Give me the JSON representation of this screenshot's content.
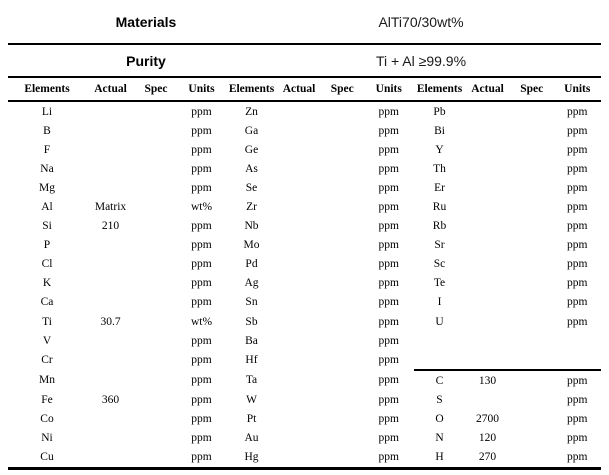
{
  "document": {
    "materials_label": "Materials",
    "materials_value": "AlTi70/30wt%",
    "purity_label": "Purity",
    "purity_value": "Ti + Al ≥99.9%"
  },
  "table": {
    "column_headers": [
      "Elements",
      "Actual",
      "Spec",
      "Units"
    ],
    "groups": [
      {
        "rows": [
          [
            "Li",
            "",
            "",
            "ppm"
          ],
          [
            "B",
            "",
            "",
            "ppm"
          ],
          [
            "F",
            "",
            "",
            "ppm"
          ],
          [
            "Na",
            "",
            "",
            "ppm"
          ],
          [
            "Mg",
            "",
            "",
            "ppm"
          ],
          [
            "Al",
            "Matrix",
            "",
            "wt%"
          ],
          [
            "Si",
            "210",
            "",
            "ppm"
          ],
          [
            "P",
            "",
            "",
            "ppm"
          ],
          [
            "Cl",
            "",
            "",
            "ppm"
          ],
          [
            "K",
            "",
            "",
            "ppm"
          ],
          [
            "Ca",
            "",
            "",
            "ppm"
          ],
          [
            "Ti",
            "30.7",
            "",
            "wt%"
          ],
          [
            "V",
            "",
            "",
            "ppm"
          ],
          [
            "Cr",
            "",
            "",
            "ppm"
          ],
          [
            "Mn",
            "",
            "",
            "ppm"
          ],
          [
            "Fe",
            "360",
            "",
            "ppm"
          ],
          [
            "Co",
            "",
            "",
            "ppm"
          ],
          [
            "Ni",
            "",
            "",
            "ppm"
          ],
          [
            "Cu",
            "",
            "",
            "ppm"
          ]
        ]
      },
      {
        "rows": [
          [
            "Zn",
            "",
            "",
            "ppm"
          ],
          [
            "Ga",
            "",
            "",
            "ppm"
          ],
          [
            "Ge",
            "",
            "",
            "ppm"
          ],
          [
            "As",
            "",
            "",
            "ppm"
          ],
          [
            "Se",
            "",
            "",
            "ppm"
          ],
          [
            "Zr",
            "",
            "",
            "ppm"
          ],
          [
            "Nb",
            "",
            "",
            "ppm"
          ],
          [
            "Mo",
            "",
            "",
            "ppm"
          ],
          [
            "Pd",
            "",
            "",
            "ppm"
          ],
          [
            "Ag",
            "",
            "",
            "ppm"
          ],
          [
            "Sn",
            "",
            "",
            "ppm"
          ],
          [
            "Sb",
            "",
            "",
            "ppm"
          ],
          [
            "Ba",
            "",
            "",
            "ppm"
          ],
          [
            "Hf",
            "",
            "",
            "ppm"
          ],
          [
            "Ta",
            "",
            "",
            "ppm"
          ],
          [
            "W",
            "",
            "",
            "ppm"
          ],
          [
            "Pt",
            "",
            "",
            "ppm"
          ],
          [
            "Au",
            "",
            "",
            "ppm"
          ],
          [
            "Hg",
            "",
            "",
            "ppm"
          ]
        ]
      },
      {
        "divider_above_row": 14,
        "rows": [
          [
            "Pb",
            "",
            "",
            "ppm"
          ],
          [
            "Bi",
            "",
            "",
            "ppm"
          ],
          [
            "Y",
            "",
            "",
            "ppm"
          ],
          [
            "Th",
            "",
            "",
            "ppm"
          ],
          [
            "Er",
            "",
            "",
            "ppm"
          ],
          [
            "Ru",
            "",
            "",
            "ppm"
          ],
          [
            "Rb",
            "",
            "",
            "ppm"
          ],
          [
            "Sr",
            "",
            "",
            "ppm"
          ],
          [
            "Sc",
            "",
            "",
            "ppm"
          ],
          [
            "Te",
            "",
            "",
            "ppm"
          ],
          [
            "I",
            "",
            "",
            "ppm"
          ],
          [
            "U",
            "",
            "",
            "ppm"
          ],
          [
            "",
            "",
            "",
            ""
          ],
          [
            "",
            "",
            "",
            ""
          ],
          [
            "C",
            "130",
            "",
            "ppm"
          ],
          [
            "S",
            "",
            "",
            "ppm"
          ],
          [
            "O",
            "2700",
            "",
            "ppm"
          ],
          [
            "N",
            "120",
            "",
            "ppm"
          ],
          [
            "H",
            "270",
            "",
            "ppm"
          ]
        ]
      }
    ]
  }
}
